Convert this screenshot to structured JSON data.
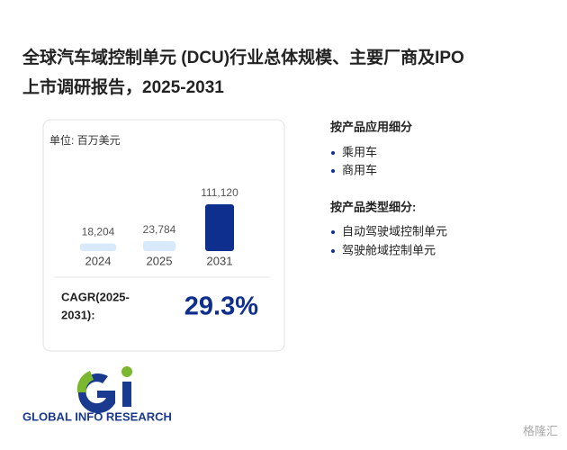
{
  "title_lines": [
    "全球汽车域控制单元 (DCU)行业总体规模、主要厂商及IPO",
    "上市调研报告，2025-2031"
  ],
  "chart_data": {
    "type": "bar",
    "unit_label": "单位: 百万美元",
    "categories": [
      "2024",
      "2025",
      "2031"
    ],
    "values": [
      18204,
      23784,
      111120
    ],
    "value_labels": [
      "18,204",
      "23,784",
      "111,120"
    ],
    "colors": [
      "#d7e9fb",
      "#d7e9fb",
      "#0f2f8e"
    ]
  },
  "cagr": {
    "label_lines": [
      "CAGR(2025-",
      "2031):"
    ],
    "value": "29.3%"
  },
  "by_application": {
    "title": "按产品应用细分",
    "items": [
      "乘用车",
      "商用车"
    ]
  },
  "by_type": {
    "title": "按产品类型细分:",
    "items": [
      "自动驾驶域控制单元",
      "驾驶舱域控制单元"
    ]
  },
  "logo_text": "GLOBAL INFO RESEARCH",
  "watermark": "格隆汇"
}
